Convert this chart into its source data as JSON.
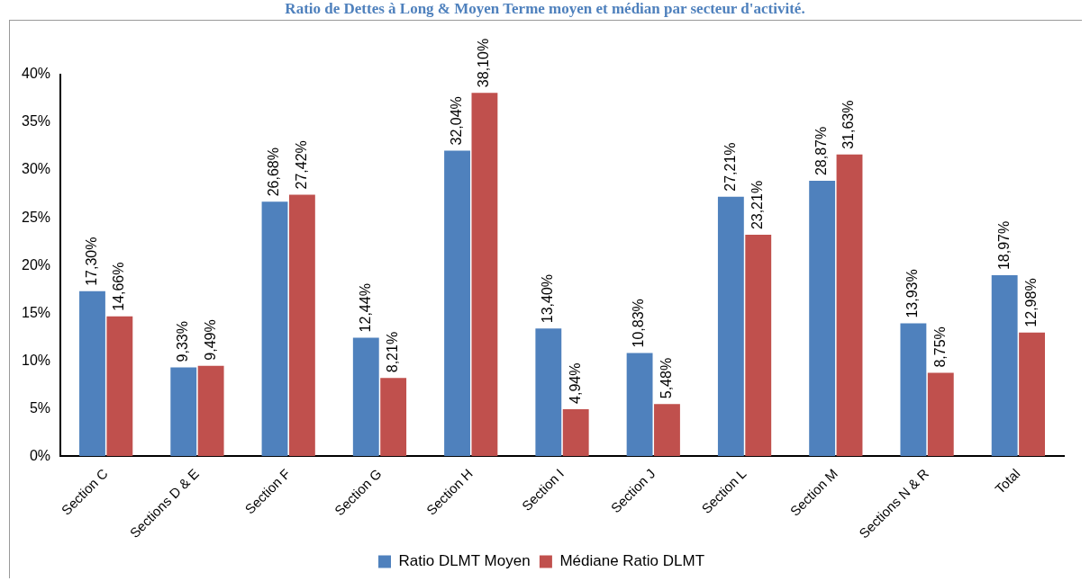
{
  "chart_data": {
    "type": "bar",
    "title": "Ratio de Dettes à Long & Moyen Terme moyen et médian par secteur d'activité.",
    "categories": [
      "Section C",
      "Sections D & E",
      "Section F",
      "Section G",
      "Section H",
      "Section I",
      "Section J",
      "Section L",
      "Section M",
      "Sections N & R",
      "Total"
    ],
    "series": [
      {
        "name": "Ratio DLMT Moyen",
        "color": "#4f81bd",
        "values": [
          17.3,
          9.33,
          26.68,
          12.44,
          32.04,
          13.4,
          10.83,
          27.21,
          28.87,
          13.93,
          18.97
        ],
        "value_labels": [
          "17,30%",
          "9,33%",
          "26,68%",
          "12,44%",
          "32,04%",
          "13,40%",
          "10,83%",
          "27,21%",
          "28,87%",
          "13,93%",
          "18,97%"
        ]
      },
      {
        "name": "Médiane Ratio DLMT",
        "color": "#c0504d",
        "values": [
          14.66,
          9.49,
          27.42,
          8.21,
          38.1,
          4.94,
          5.48,
          23.21,
          31.63,
          8.75,
          12.98
        ],
        "value_labels": [
          "14,66%",
          "9,49%",
          "27,42%",
          "8,21%",
          "38,10%",
          "4,94%",
          "5,48%",
          "23,21%",
          "31,63%",
          "8,75%",
          "12,98%"
        ]
      }
    ],
    "ylim": [
      0,
      40
    ],
    "yticks": [
      {
        "value": 0,
        "label": "0%"
      },
      {
        "value": 5,
        "label": "5%"
      },
      {
        "value": 10,
        "label": "10%"
      },
      {
        "value": 15,
        "label": "15%"
      },
      {
        "value": 20,
        "label": "20%"
      },
      {
        "value": 25,
        "label": "25%"
      },
      {
        "value": 30,
        "label": "30%"
      },
      {
        "value": 35,
        "label": "35%"
      },
      {
        "value": 40,
        "label": "40%"
      }
    ],
    "grid": false,
    "legend": "bottom"
  }
}
